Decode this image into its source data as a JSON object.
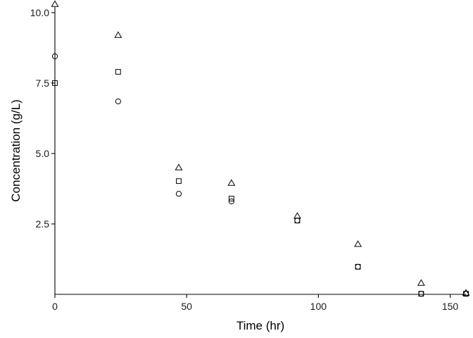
{
  "chart_data": {
    "type": "scatter",
    "xlabel": "Time (hr)",
    "ylabel": "Concentration (g/L)",
    "xlim": [
      0,
      156
    ],
    "ylim": [
      0,
      10.2
    ],
    "x_ticks": [
      0,
      50,
      100,
      150
    ],
    "x_tick_labels": [
      "0",
      "50",
      "100",
      "150"
    ],
    "y_ticks": [
      2.5,
      5.0,
      7.5,
      10.0
    ],
    "y_tick_labels": [
      "2.5",
      "5.0",
      "7.5",
      "10.0"
    ],
    "grid": false,
    "legend": "none",
    "series": [
      {
        "marker": "circle",
        "x": [
          0,
          24,
          47,
          67,
          92,
          115,
          139,
          156
        ],
        "y": [
          8.45,
          6.85,
          3.57,
          3.3,
          2.62,
          0.98,
          0.02,
          0.02
        ]
      },
      {
        "marker": "square",
        "x": [
          0,
          24,
          47,
          67,
          92,
          115,
          139,
          156
        ],
        "y": [
          7.5,
          7.9,
          4.02,
          3.4,
          2.62,
          0.98,
          0.02,
          0.02
        ]
      },
      {
        "marker": "triangle",
        "x": [
          0,
          24,
          47,
          67,
          92,
          115,
          139,
          156
        ],
        "y": [
          10.3,
          9.2,
          4.5,
          3.95,
          2.78,
          1.78,
          0.4,
          0.05
        ]
      }
    ]
  }
}
